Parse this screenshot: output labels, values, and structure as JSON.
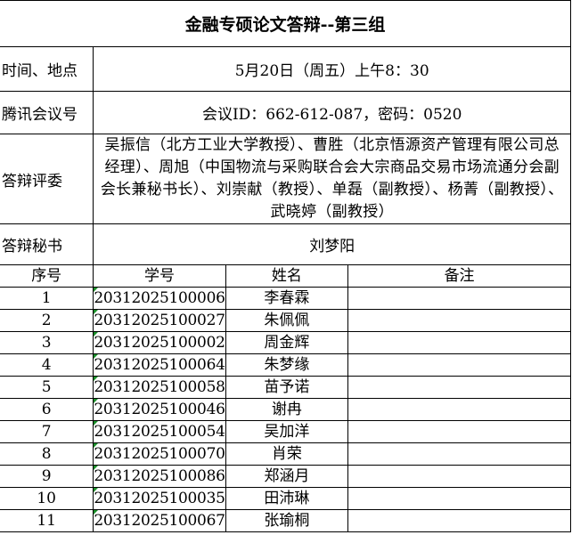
{
  "title": "金融专硕论文答辩--第三组",
  "info": [
    {
      "label": "时间、地点",
      "value": "5月20日（周五）上午8：30"
    },
    {
      "label": "腾讯会议号",
      "value": "会议ID：662-612-087，密码：0520"
    },
    {
      "label": "答辩评委",
      "value": "吴振信（北方工业大学教授）、曹胜（北京悟源资产管理有限公司总经理）、周旭（中国物流与采购联合会大宗商品交易市场流通分会副会长兼秘书长）、刘崇献（教授）、单磊（副教授）、杨菁（副教授）、武晓婷（副教授）"
    },
    {
      "label": "答辩秘书",
      "value": "刘梦阳"
    }
  ],
  "headers": [
    "序号",
    "学号",
    "姓名",
    "备注"
  ],
  "rows": [
    {
      "no": "1",
      "id": "20312025100006",
      "name": "李春霖"
    },
    {
      "no": "2",
      "id": "20312025100027",
      "name": "朱佩佩"
    },
    {
      "no": "3",
      "id": "20312025100002",
      "name": "周金辉"
    },
    {
      "no": "4",
      "id": "20312025100064",
      "name": "朱梦缘"
    },
    {
      "no": "5",
      "id": "20312025100058",
      "name": "苗予诺"
    },
    {
      "no": "6",
      "id": "20312025100046",
      "name": "谢冉"
    },
    {
      "no": "7",
      "id": "20312025100054",
      "name": "吴加洋"
    },
    {
      "no": "8",
      "id": "20312025100070",
      "name": "肖荣"
    },
    {
      "no": "9",
      "id": "20312025100086",
      "name": "郑涵月"
    },
    {
      "no": "10",
      "id": "20312025100035",
      "name": "田沛琳"
    },
    {
      "no": "11",
      "id": "20312025100067",
      "name": "张瑜桐"
    }
  ]
}
